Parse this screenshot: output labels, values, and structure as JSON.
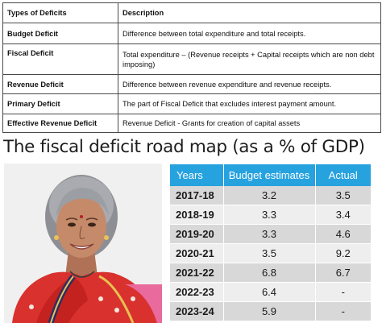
{
  "deficits_table": {
    "headers": {
      "type": "Types of Deficits",
      "description": "Description"
    },
    "rows": [
      {
        "type": "Budget Deficit",
        "description": "Difference between total expenditure and total receipts."
      },
      {
        "type": "Fiscal Deficit",
        "description": "Total expenditure – (Revenue receipts + Capital receipts which are non debt imposing)"
      },
      {
        "type": "Revenue Deficit",
        "description": "Difference between revenue expenditure and revenue receipts."
      },
      {
        "type": "Primary Deficit",
        "description": "The part of Fiscal Deficit that excludes interest payment amount."
      },
      {
        "type": "Effective Revenue Deficit",
        "description": "Revenue Deficit - Grants for creation of capital assets"
      }
    ]
  },
  "roadmap": {
    "title": "The fiscal deficit road map (as a % of GDP)",
    "headers": {
      "year": "Years",
      "budget": "Budget estimates",
      "actual": "Actual"
    },
    "header_color": "#26a2df",
    "rows": [
      {
        "year": "2017-18",
        "budget": "3.2",
        "actual": "3.5"
      },
      {
        "year": "2018-19",
        "budget": "3.3",
        "actual": "3.4"
      },
      {
        "year": "2019-20",
        "budget": "3.3",
        "actual": "4.6"
      },
      {
        "year": "2020-21",
        "budget": "3.5",
        "actual": "9.2"
      },
      {
        "year": "2021-22",
        "budget": "6.8",
        "actual": "6.7"
      },
      {
        "year": "2022-23",
        "budget": "6.4",
        "actual": "-"
      },
      {
        "year": "2023-24",
        "budget": "5.9",
        "actual": "-"
      }
    ]
  },
  "photo": {
    "subject": "portrait-photo"
  }
}
